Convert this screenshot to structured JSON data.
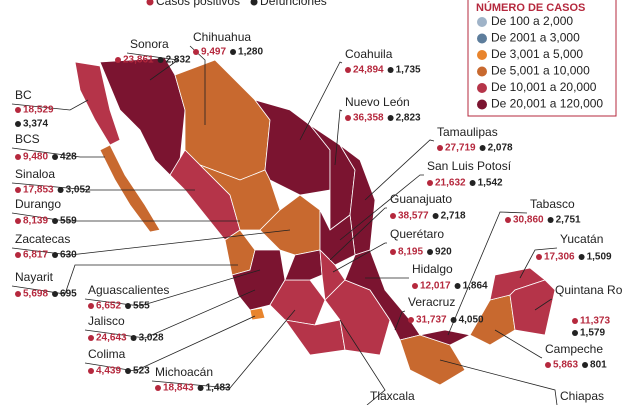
{
  "top_legend": [
    "Casos positivos",
    "Defunciones"
  ],
  "legend": {
    "title": "NÚMERO DE CASOS",
    "items": [
      {
        "label": "De 100 a 2,000",
        "color": "#9fb3c8"
      },
      {
        "label": "De 2001 a 3,000",
        "color": "#5d7d9c"
      },
      {
        "label": "De 3,001 a 5,000",
        "color": "#e8842c"
      },
      {
        "label": "De 5,001 a 10,000",
        "color": "#c8692f"
      },
      {
        "label": "De 10,001 a 20,000",
        "color": "#b53449"
      },
      {
        "label": "De 20,001 a 120,000",
        "color": "#7b1430"
      }
    ]
  },
  "states": [
    {
      "name": "Sonora",
      "cases": "23,861",
      "deaths": "2,832"
    },
    {
      "name": "Chihuahua",
      "cases": "9,497",
      "deaths": "1,280"
    },
    {
      "name": "Coahuila",
      "cases": "24,894",
      "deaths": "1,735"
    },
    {
      "name": "Nuevo León",
      "cases": "36,358",
      "deaths": "2,823"
    },
    {
      "name": "Tamaulipas",
      "cases": "27,719",
      "deaths": "2,078"
    },
    {
      "name": "San Luis Potosí",
      "cases": "21,632",
      "deaths": "1,542"
    },
    {
      "name": "Guanajuato",
      "cases": "38,577",
      "deaths": "2,718"
    },
    {
      "name": "Querétaro",
      "cases": "8,195",
      "deaths": "920"
    },
    {
      "name": "Hidalgo",
      "cases": "12,017",
      "deaths": "1,864"
    },
    {
      "name": "Veracruz",
      "cases": "31,737",
      "deaths": "4,050"
    },
    {
      "name": "BC",
      "cases": "18,529",
      "deaths": "3,374"
    },
    {
      "name": "BCS",
      "cases": "9,480",
      "deaths": "428"
    },
    {
      "name": "Sinaloa",
      "cases": "17,853",
      "deaths": "3,052"
    },
    {
      "name": "Durango",
      "cases": "8,139",
      "deaths": "559"
    },
    {
      "name": "Zacatecas",
      "cases": "6,817",
      "deaths": "630"
    },
    {
      "name": "Nayarit",
      "cases": "5,698",
      "deaths": "695"
    },
    {
      "name": "Aguascalientes",
      "cases": "6,652",
      "deaths": "555"
    },
    {
      "name": "Jalisco",
      "cases": "24,643",
      "deaths": "3,028"
    },
    {
      "name": "Colima",
      "cases": "4,439",
      "deaths": "523"
    },
    {
      "name": "Michoacán",
      "cases": "18,843",
      "deaths": "1,483"
    },
    {
      "name": "Tabasco",
      "cases": "30,860",
      "deaths": "2,751"
    },
    {
      "name": "Yucatán",
      "cases": "17,306",
      "deaths": "1,509"
    },
    {
      "name": "Quintana Roo",
      "cases": "11,373",
      "deaths": "1,579"
    },
    {
      "name": "Campeche",
      "cases": "5,863",
      "deaths": "801"
    },
    {
      "name": "Tlaxcala"
    },
    {
      "name": "Chiapas"
    }
  ]
}
